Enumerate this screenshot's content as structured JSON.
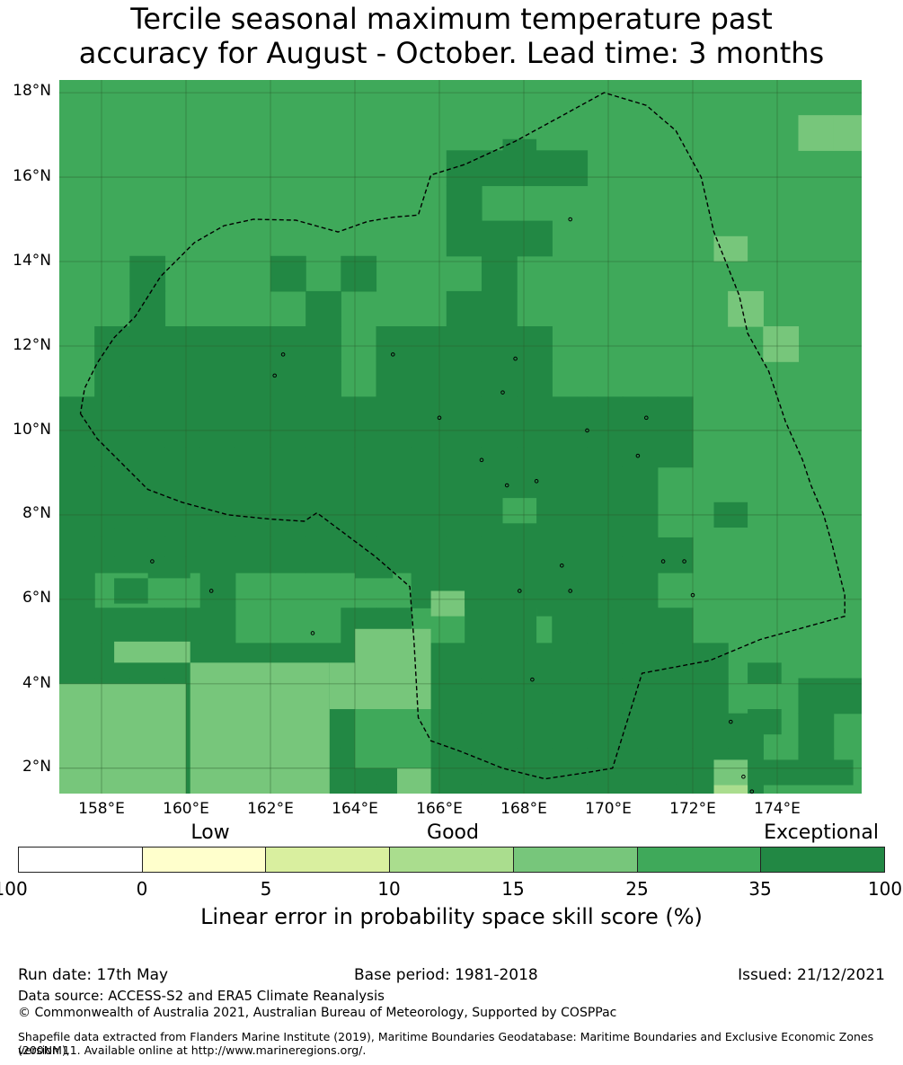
{
  "title_line1": "Tercile seasonal maximum temperature past",
  "title_line2": "accuracy for August - October. Lead time: 3 months",
  "map": {
    "lat_labels": [
      "18°N",
      "16°N",
      "14°N",
      "12°N",
      "10°N",
      "8°N",
      "6°N",
      "4°N",
      "2°N"
    ],
    "lon_labels": [
      "158°E",
      "160°E",
      "162°E",
      "164°E",
      "166°E",
      "168°E",
      "170°E",
      "172°E",
      "174°E"
    ],
    "lon_range": [
      157,
      176
    ],
    "lat_range": [
      1.4,
      18.3
    ],
    "cell_size_deg": 0.8333,
    "colors": {
      "A": "#3fa95a",
      "D": "#228844",
      "L": "#77c67b",
      "Y": "#aadd8e",
      "grid": "#2a5a2a",
      "boundary": "#000000"
    },
    "grid_rows": [
      "AAAAAAAAAAAAAAAAAAAAAAA",
      "AAAAAAAAAAAAAAAAAAAAAAL",
      "AAAAAAAAAAADDDDAAAAAAAA",
      "AAAAAAAAAAADAAAAAAAAAAA",
      "AAAAAAAAAAADDDAAAAAAAAA",
      "AAAAAAAAAAAADAAAAAAAAAA",
      "AADAAAADAAADDAAAAAAAAAA",
      "AAAAADDDADDDDAAAAAAALAA",
      "AAAAADDAADDDAAAAAAAAAAA",
      "AADDDDDDADDDDDAAAAAAAAA",
      "AADDDDDAAADDDDAAAAAAAAA",
      "DDDDDDDDDDDDDDDDDAAAAAA",
      "DDADDDDDDDDDDDDDDAAAAAA",
      "DDDDDDDDDDDDDDDDDDAAAAA",
      "DAAADAAAAADDDDDDDAAAAAA",
      "DDDDDAAADDAADADDDDAAAAA",
      "DDDDDDDDDDDDDDDDDDDAAAA",
      "DDDDDDDDDDDDDDDDDDDAAAA",
      "DDDDDDDDDDDDDDDDDDDDAAAD",
      "DDDDDDDDDDDDDDDDDDDDADAD",
      "DDDDDDDDDDDDDDDDDDDDAAAD",
      "DDDDDDDDDDDDDDDDDDDDDDA",
      "DDDDDDDDDDDDDDDDDDDDDDA",
      "AAAAAAAAAAAAAAAAAAAAAAA",
      "AAAAAAAAAAAAAAAAAAAAAAA",
      "AAAAAAAAAAAAAAAAAAAAAAA",
      "AAAAAAAAAAAAAAAAAAAAAAA",
      "AAAAAAAAAAAAAAAAAAAAAAA",
      "AAAAAAAAAAAAAAAAAAAAAAA",
      "AAAAAAAAAAAAAAAAAAAAAAA",
      "AAAAAAAAAAAAAAAAAAAAAAA",
      "AAAAAAAAAAAAAAAAAAAAAAA",
      "AAAAAAAAAAAAAAAAAAAAAAA",
      "AAAAAAAAAAAAAAAAAAAAAAA",
      "AAAAAAAAAAAAAAAAAAAAAAA",
      "AAAAAAAAAAAAAAAAAAAAAAA",
      "AAAAAAAAAAAAAAAAAAAAAAA",
      "AAAAAAAAAAAAAAAAAAAAAAA"
    ],
    "grid_overrides": [
      {
        "lat_idx": 1,
        "lon_start": 21,
        "lon_end": 22,
        "c": "L"
      },
      {
        "lat_idx": 5,
        "lon_start": 2,
        "lon_end": 2,
        "c": "D"
      },
      {
        "lat_idx": 5,
        "lon_start": 6,
        "lon_end": 6,
        "c": "D"
      },
      {
        "lat_idx": 5,
        "lon_start": 8,
        "lon_end": 8,
        "c": "D"
      },
      {
        "lat_idx": 6,
        "lon_start": 19,
        "lon_end": 19,
        "c": "L"
      },
      {
        "lat_idx": 7,
        "lon_start": 1,
        "lon_end": 7,
        "c": "D"
      },
      {
        "lat_idx": 7,
        "lon_start": 9,
        "lon_end": 13,
        "c": "D"
      },
      {
        "lat_idx": 8,
        "lon_start": 1,
        "lon_end": 7,
        "c": "D"
      },
      {
        "lat_idx": 8,
        "lon_start": 9,
        "lon_end": 13,
        "c": "D"
      },
      {
        "lat_idx": 9,
        "lon_start": 0,
        "lon_end": 17,
        "c": "D"
      },
      {
        "lat_idx": 10,
        "lon_start": 0,
        "lon_end": 17,
        "c": "D"
      },
      {
        "lat_idx": 11,
        "lon_start": 0,
        "lon_end": 16,
        "c": "D"
      },
      {
        "lat_idx": 12,
        "lon_start": 0,
        "lon_end": 16,
        "c": "D"
      },
      {
        "lat_idx": 13,
        "lon_start": 0,
        "lon_end": 17,
        "c": "D"
      },
      {
        "lat_idx": 17,
        "lon_start": 21,
        "lon_end": 22,
        "c": "D"
      },
      {
        "lat_idx": 18,
        "lon_start": 21,
        "lon_end": 21,
        "c": "D"
      },
      {
        "lat_idx": 19,
        "lon_start": 19,
        "lon_end": 19,
        "c": "D"
      },
      {
        "lat_idx": 20,
        "lon_start": 19,
        "lon_end": 19,
        "c": "D"
      },
      {
        "lat_idx": 21,
        "lon_start": 0,
        "lon_end": 20,
        "c": "D"
      },
      {
        "lat_idx": 22,
        "lon_start": 0,
        "lon_end": 20,
        "c": "D"
      }
    ],
    "note_rows": "rows listed from north (top) to south; each char one 0.8333° cell from 157°E"
  },
  "colorbar": {
    "categories": [
      "Low",
      "Good",
      "Exceptional"
    ],
    "ticks": [
      "-100",
      "0",
      "5",
      "10",
      "15",
      "25",
      "35",
      "100"
    ],
    "colors": [
      "#ffffff",
      "#ffffcc",
      "#d9ef9f",
      "#aadd8e",
      "#77c67b",
      "#3fa95a",
      "#228844"
    ],
    "label": "Linear error in probability space skill score (%)"
  },
  "footer": {
    "run_date": "Run date: 17th May",
    "base_period": "Base period: 1981-2018",
    "issued": "Issued: 21/12/2021",
    "data_source": "Data source: ACCESS-S2 and ERA5 Climate Reanalysis",
    "copyright": "© Commonwealth of Australia 2021, Australian Bureau of Meteorology, Supported by COSPPac",
    "shapefile_line1": "Shapefile data extracted from Flanders Marine Institute (2019), Maritime Boundaries Geodatabase: Maritime Boundaries and Exclusive Economic Zones (200NM),",
    "shapefile_line2": "version 11. Available online at http://www.marineregions.org/."
  }
}
